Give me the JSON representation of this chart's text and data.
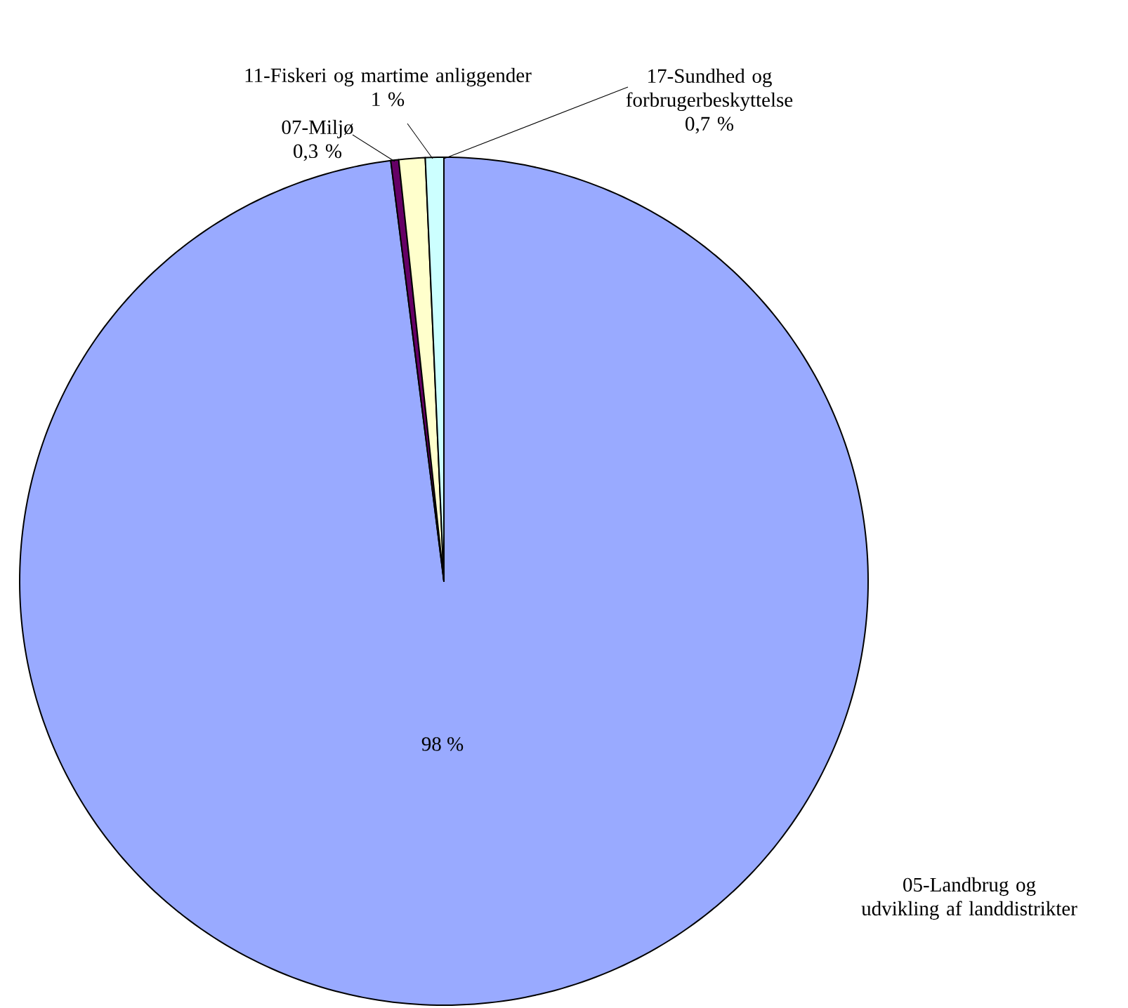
{
  "chart_data": {
    "type": "pie",
    "categories": [
      "05-Landbrug og udvikling af landdistrikter",
      "07-Miljø",
      "11-Fiskeri og martime anliggender",
      "17-Sundhed og forbrugerbeskyttelse"
    ],
    "values": [
      98,
      0.3,
      1,
      0.7
    ],
    "value_labels": [
      "98 %",
      "0,3 %",
      "1 %",
      "0,7 %"
    ],
    "colors": [
      "#99aaff",
      "#660066",
      "#ffffcc",
      "#ccffff"
    ]
  }
}
